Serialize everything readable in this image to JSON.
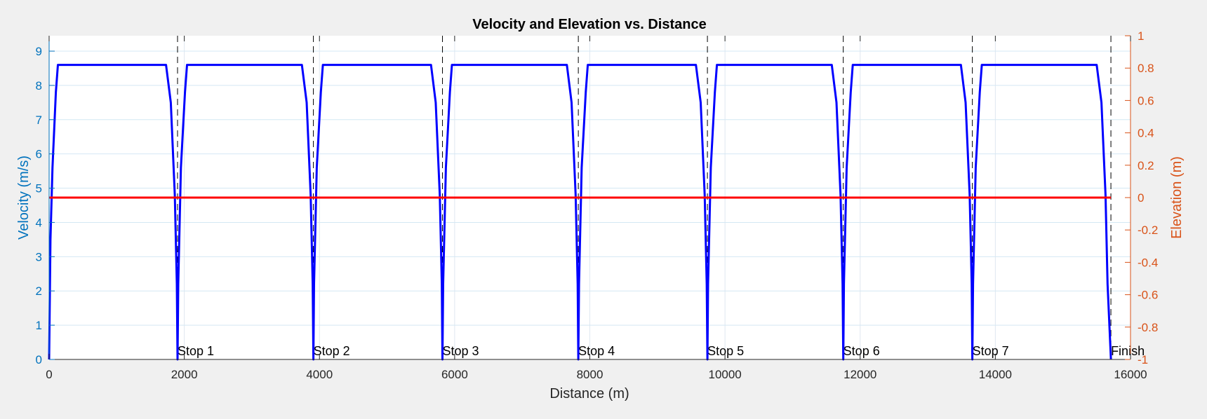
{
  "chart_data": {
    "type": "line",
    "title": "Velocity and Elevation vs. Distance",
    "xlabel": "Distance (m)",
    "ylabel_left": "Velocity (m/s)",
    "ylabel_right": "Elevation (m)",
    "xlim": [
      0,
      16000
    ],
    "ylim_left": [
      0,
      9.45
    ],
    "ylim_right": [
      -1,
      1
    ],
    "x_ticks": [
      0,
      2000,
      4000,
      6000,
      8000,
      10000,
      12000,
      14000,
      16000
    ],
    "x_tick_labels": [
      "0",
      "2000",
      "4000",
      "6000",
      "8000",
      "10000",
      "12000",
      "14000",
      "16000"
    ],
    "y_left_ticks": [
      0,
      1,
      2,
      3,
      4,
      5,
      6,
      7,
      8,
      9
    ],
    "y_left_tick_labels": [
      "0",
      "1",
      "2",
      "3",
      "4",
      "5",
      "6",
      "7",
      "8",
      "9"
    ],
    "y_right_ticks": [
      -1,
      -0.8,
      -0.6,
      -0.4,
      -0.2,
      0,
      0.2,
      0.4,
      0.6,
      0.8,
      1
    ],
    "y_right_tick_labels": [
      "-1",
      "-0.8",
      "-0.6",
      "-0.4",
      "-0.2",
      "0",
      "0.2",
      "0.4",
      "0.6",
      "0.8",
      "1"
    ],
    "grid": true,
    "colors": {
      "velocity": "#0000ff",
      "elevation": "#ff0000",
      "left_axis": "#0072bd",
      "right_axis": "#d95319",
      "stop_lines": "#000000"
    },
    "series": [
      {
        "axis": "left",
        "x": [
          0,
          20,
          50,
          100,
          130,
          1730,
          1800,
          1860,
          1890,
          1900,
          1910,
          1950,
          2010,
          2040,
          3740,
          3810,
          3870,
          3900,
          3910,
          3920,
          3960,
          4020,
          4050,
          5650,
          5720,
          5780,
          5810,
          5820,
          5830,
          5870,
          5930,
          5960,
          7660,
          7730,
          7790,
          7820,
          7830,
          7840,
          7880,
          7940,
          7970,
          9570,
          9640,
          9700,
          9730,
          9740,
          9750,
          9790,
          9850,
          9880,
          11580,
          11650,
          11710,
          11740,
          11750,
          11760,
          11800,
          11860,
          11890,
          13490,
          13560,
          13620,
          13650,
          13660,
          13670,
          13710,
          13770,
          13800,
          15500,
          15570,
          15630,
          15660,
          15710
        ],
        "y": [
          0,
          3.5,
          5.6,
          7.8,
          8.6,
          8.6,
          7.5,
          4.8,
          2.2,
          0,
          2.2,
          5.6,
          7.8,
          8.6,
          8.6,
          7.5,
          4.8,
          2.2,
          0,
          2.2,
          5.6,
          7.8,
          8.6,
          8.6,
          7.5,
          4.8,
          2.2,
          0,
          2.2,
          5.6,
          7.8,
          8.6,
          8.6,
          7.5,
          4.8,
          2.2,
          0,
          2.2,
          5.6,
          7.8,
          8.6,
          8.6,
          7.5,
          4.8,
          2.2,
          0,
          2.2,
          5.6,
          7.8,
          8.6,
          8.6,
          7.5,
          4.8,
          2.2,
          0,
          2.2,
          5.6,
          7.8,
          8.6,
          8.6,
          7.5,
          4.8,
          2.2,
          0,
          2.2,
          5.6,
          7.8,
          8.6,
          8.6,
          7.5,
          4.8,
          2.2,
          0
        ]
      },
      {
        "axis": "right",
        "x": [
          0,
          15710
        ],
        "y": [
          0,
          0
        ]
      }
    ],
    "stops": [
      {
        "label": "Stop 1",
        "x": 1900
      },
      {
        "label": "Stop 2",
        "x": 3910
      },
      {
        "label": "Stop 3",
        "x": 5820
      },
      {
        "label": "Stop 4",
        "x": 7830
      },
      {
        "label": "Stop 5",
        "x": 9740
      },
      {
        "label": "Stop 6",
        "x": 11750
      },
      {
        "label": "Stop 7",
        "x": 13660
      },
      {
        "label": "Finish",
        "x": 15710
      }
    ]
  }
}
